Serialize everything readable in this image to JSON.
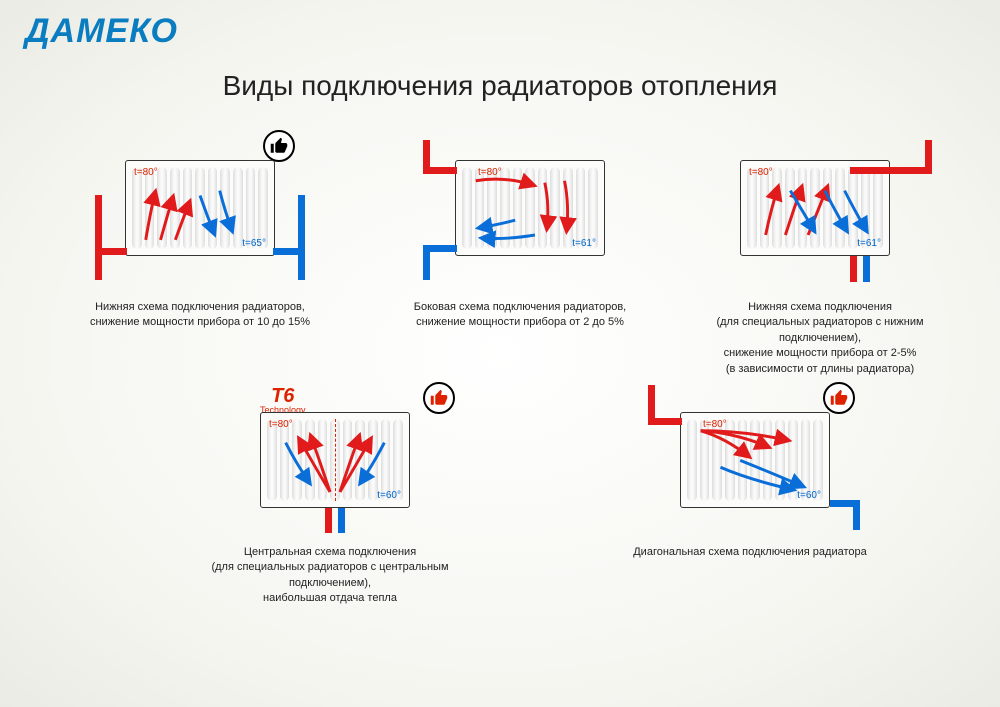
{
  "brand": "ДАМЕКО",
  "title": "Виды подключения радиаторов отопления",
  "colors": {
    "hot": "#e11b1b",
    "cold": "#0a6ed8",
    "logo": "#0a7dc0",
    "text": "#222222",
    "bg": "#fafaf8",
    "radiator_border": "#333333"
  },
  "diagrams": [
    {
      "id": "bottom-scheme",
      "temp_in": "t=80°",
      "temp_out": "t=65°",
      "caption": "Нижняя схема подключения радиаторов,\nснижение мощности прибора от 10 до 15%",
      "connection": "bottom-left-right",
      "badge": "thumbs-down",
      "badge_pos": "top-right"
    },
    {
      "id": "side-scheme",
      "temp_in": "t=80°",
      "temp_out": "t=61°",
      "caption": "Боковая схема подключения радиаторов,\nснижение мощности прибора от 2 до 5%",
      "connection": "side-left",
      "badge": null
    },
    {
      "id": "bottom-special",
      "temp_in": "t=80°",
      "temp_out": "t=61°",
      "caption": "Нижняя схема подключения\n(для специальных радиаторов с нижним подключением),\nснижение мощности прибора от 2-5%\n(в зависимости от длины радиатора)",
      "connection": "bottom-right-pair",
      "badge": null
    },
    {
      "id": "central-scheme",
      "temp_in": "t=80°",
      "temp_out": "t=60°",
      "caption": "Центральная схема подключения\n(для специальных радиаторов с центральным подключением),\nнаибольшая отдача тепла",
      "connection": "bottom-center-pair",
      "badge": "thumbs-up",
      "badge_pos": "top-right",
      "t6_badge": true
    },
    {
      "id": "diagonal-scheme",
      "temp_in": "t=80°",
      "temp_out": "t=60°",
      "caption": "Диагональная схема подключения радиатора",
      "connection": "diagonal",
      "badge": "thumbs-up",
      "badge_pos": "top-right"
    }
  ]
}
